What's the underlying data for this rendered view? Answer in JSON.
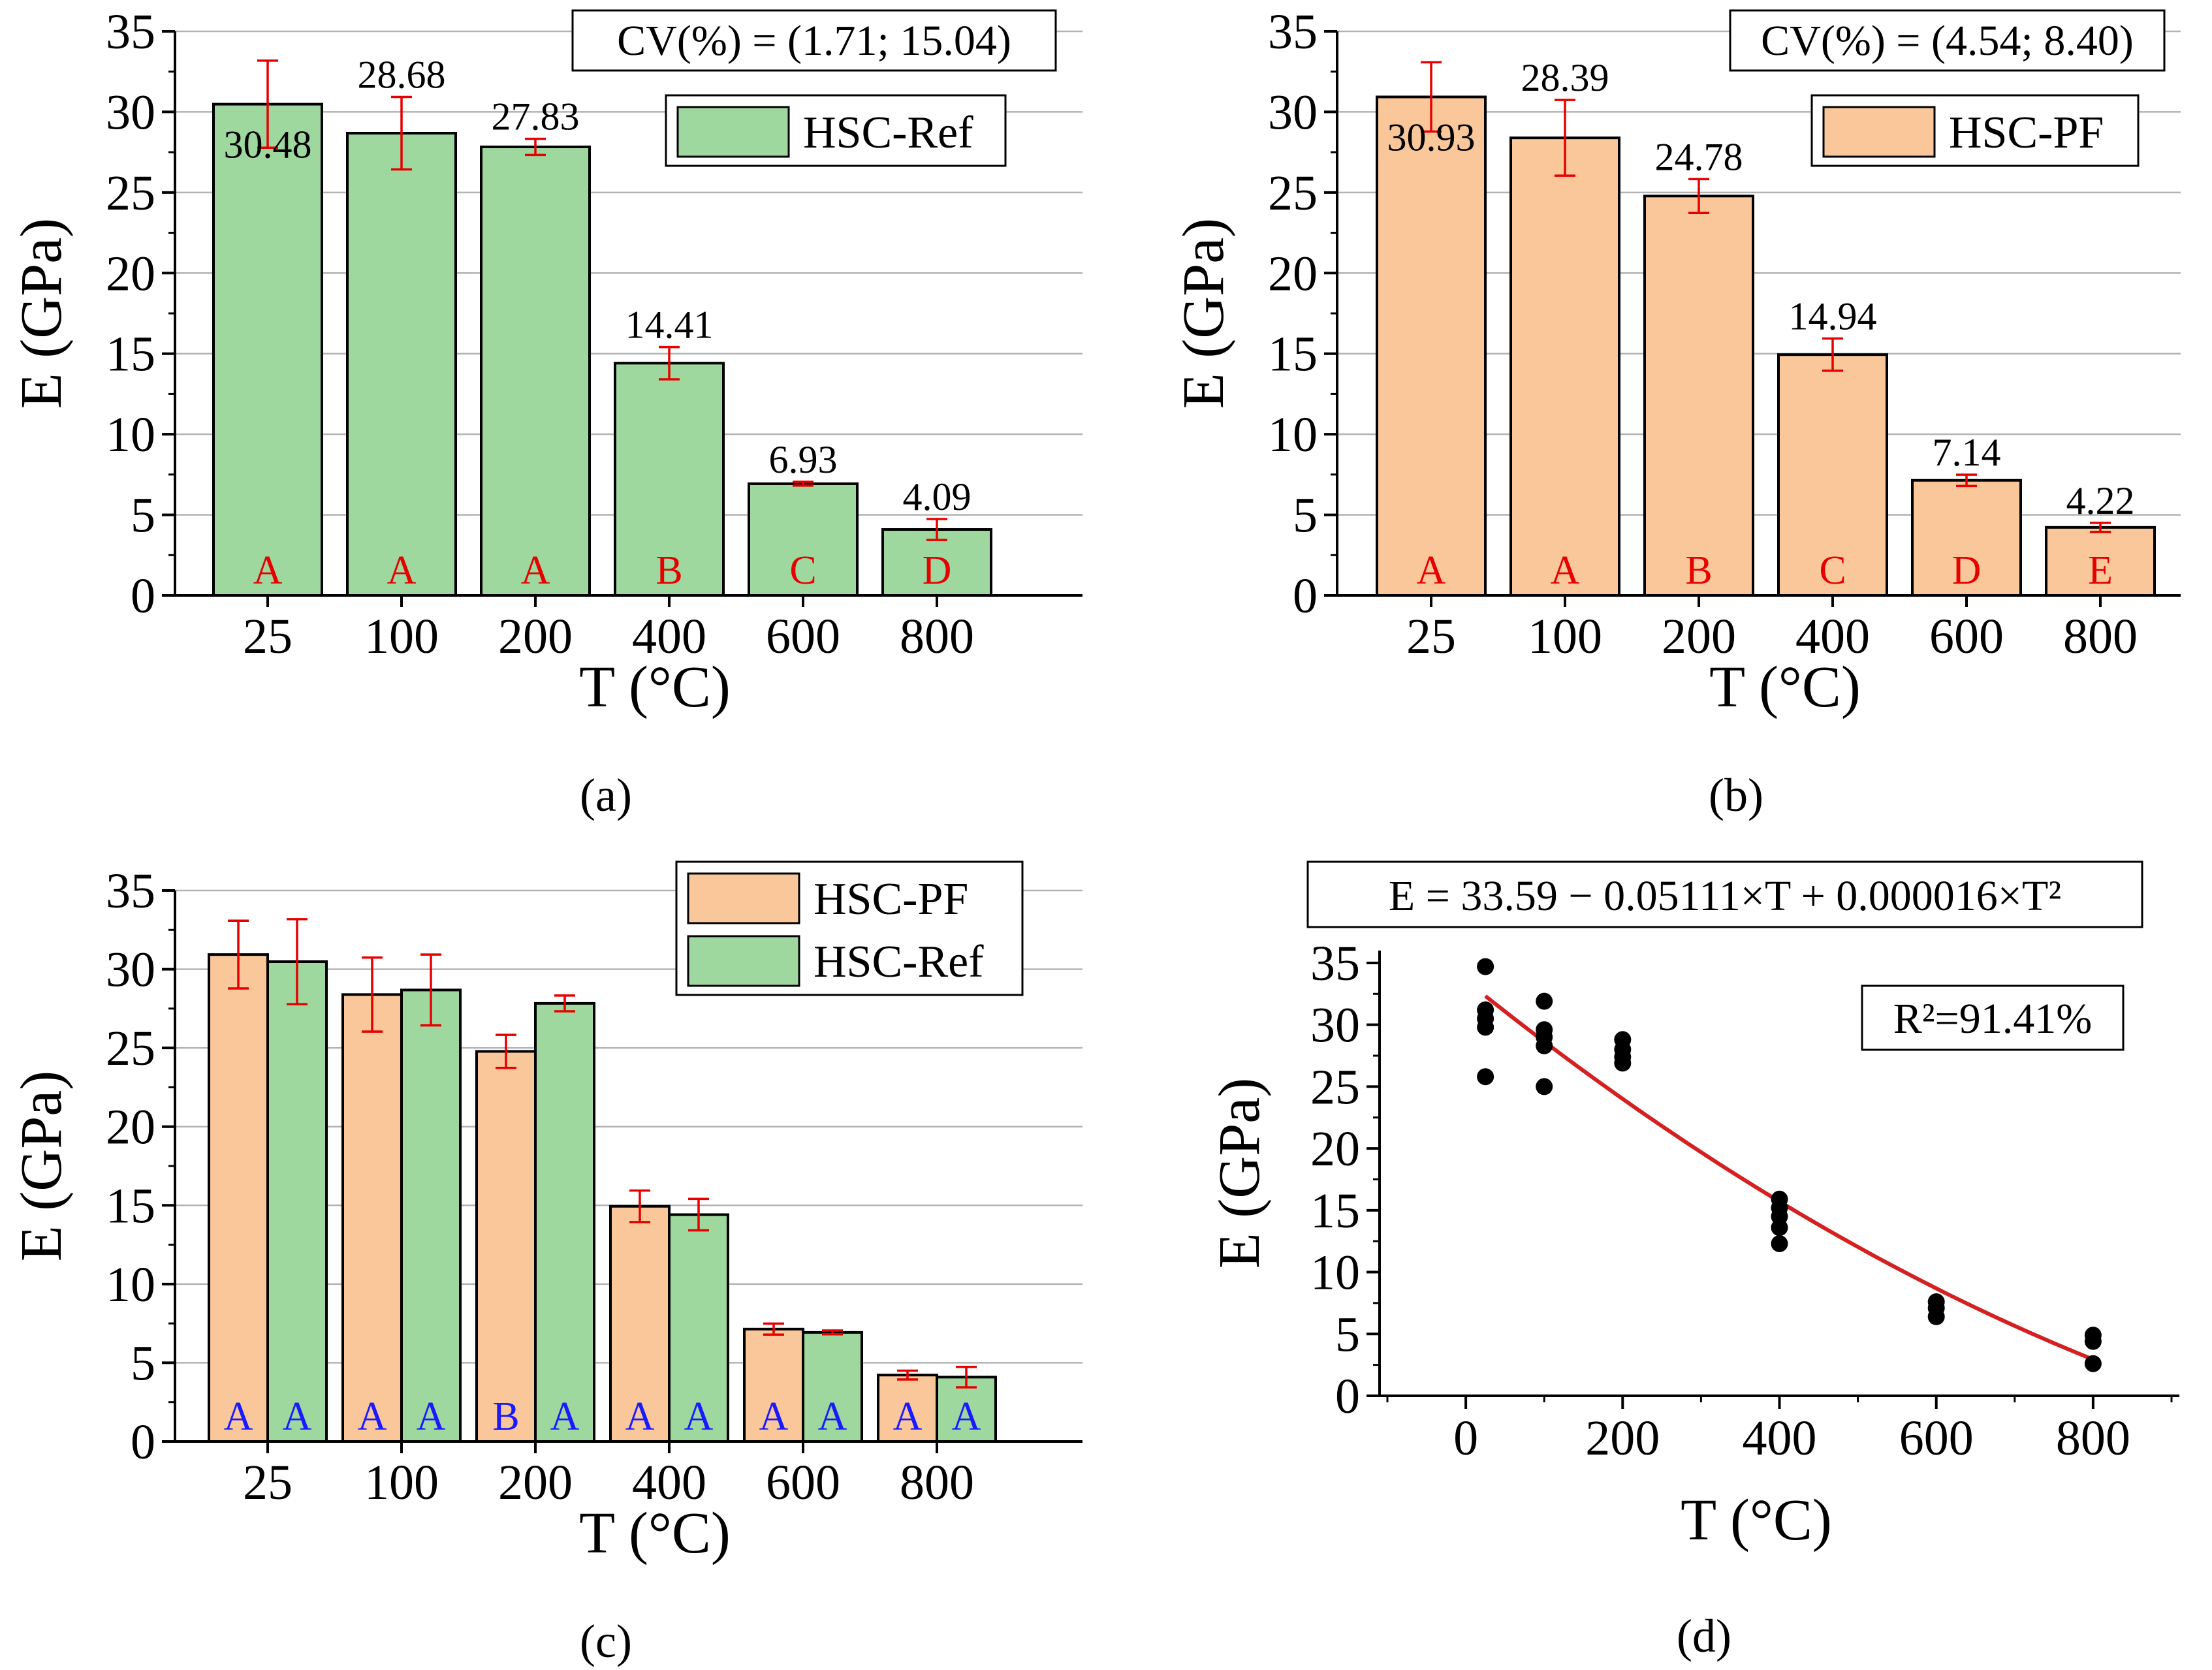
{
  "colors": {
    "ref_fill": "#9fd89f",
    "pf_fill": "#f9c79a",
    "bar_stroke": "#000000",
    "error_bar": "#e60000",
    "letters_single": "#e60000",
    "letters_compare": "#1a1aff",
    "fit_line": "#d42020",
    "points": "#000000",
    "grid": "#b3b3b3"
  },
  "chart_data": [
    {
      "panel": "(a)",
      "type": "bar",
      "xlabel": "T (°C)",
      "ylabel": "E (GPa)",
      "ylim": [
        0,
        35
      ],
      "yticks": [
        "0",
        "5",
        "10",
        "15",
        "20",
        "25",
        "30",
        "35"
      ],
      "categories": [
        "25",
        "100",
        "200",
        "400",
        "600",
        "800"
      ],
      "series": [
        {
          "name": "HSC-Ref",
          "values": [
            30.48,
            28.68,
            27.83,
            14.41,
            6.93,
            4.09
          ],
          "errors": [
            2.7,
            2.25,
            0.5,
            1.0,
            0.12,
            0.65
          ],
          "labels": [
            "30.48",
            "28.68",
            "27.83",
            "14.41",
            "6.93",
            "4.09"
          ],
          "groups": [
            "A",
            "A",
            "A",
            "B",
            "C",
            "D"
          ]
        }
      ],
      "cv_text": "CV(%) = (1.71; 15.04)",
      "legend": [
        "HSC-Ref"
      ]
    },
    {
      "panel": "(b)",
      "type": "bar",
      "xlabel": "T (°C)",
      "ylabel": "E (GPa)",
      "ylim": [
        0,
        35
      ],
      "yticks": [
        "0",
        "5",
        "10",
        "15",
        "20",
        "25",
        "30",
        "35"
      ],
      "categories": [
        "25",
        "100",
        "200",
        "400",
        "600",
        "800"
      ],
      "series": [
        {
          "name": "HSC-PF",
          "values": [
            30.93,
            28.39,
            24.78,
            14.94,
            7.14,
            4.22
          ],
          "errors": [
            2.15,
            2.35,
            1.05,
            1.0,
            0.35,
            0.28
          ],
          "labels": [
            "30.93",
            "28.39",
            "24.78",
            "14.94",
            "7.14",
            "4.22"
          ],
          "groups": [
            "A",
            "A",
            "B",
            "C",
            "D",
            "E"
          ]
        }
      ],
      "cv_text": "CV(%) = (4.54; 8.40)",
      "legend": [
        "HSC-PF"
      ]
    },
    {
      "panel": "(c)",
      "type": "bar",
      "xlabel": "T (°C)",
      "ylabel": "E (GPa)",
      "ylim": [
        0,
        35
      ],
      "yticks": [
        "0",
        "5",
        "10",
        "15",
        "20",
        "25",
        "30",
        "35"
      ],
      "categories": [
        "25",
        "100",
        "200",
        "400",
        "600",
        "800"
      ],
      "series": [
        {
          "name": "HSC-PF",
          "values": [
            30.93,
            28.39,
            24.78,
            14.94,
            7.14,
            4.22
          ],
          "errors": [
            2.15,
            2.35,
            1.05,
            1.0,
            0.35,
            0.28
          ],
          "groups": [
            "A",
            "A",
            "B",
            "A",
            "A",
            "A"
          ]
        },
        {
          "name": "HSC-Ref",
          "values": [
            30.48,
            28.68,
            27.83,
            14.41,
            6.93,
            4.09
          ],
          "errors": [
            2.7,
            2.25,
            0.5,
            1.0,
            0.12,
            0.65
          ],
          "groups": [
            "A",
            "A",
            "A",
            "A",
            "A",
            "A"
          ]
        }
      ],
      "legend": [
        "HSC-PF",
        "HSC-Ref"
      ]
    },
    {
      "panel": "(d)",
      "type": "scatter",
      "xlabel": "T (°C)",
      "ylabel": "E (GPa)",
      "xlim": [
        -110,
        910
      ],
      "ylim": [
        0,
        36
      ],
      "xticks": [
        "0",
        "200",
        "400",
        "600",
        "800"
      ],
      "yticks": [
        "0",
        "5",
        "10",
        "15",
        "20",
        "25",
        "30",
        "35"
      ],
      "points": [
        [
          25,
          34.7
        ],
        [
          25,
          31.2
        ],
        [
          25,
          30.5
        ],
        [
          25,
          29.8
        ],
        [
          25,
          25.8
        ],
        [
          100,
          31.9
        ],
        [
          100,
          29.6
        ],
        [
          100,
          29.0
        ],
        [
          100,
          28.3
        ],
        [
          100,
          25.0
        ],
        [
          200,
          28.8
        ],
        [
          200,
          28.0
        ],
        [
          200,
          27.4
        ],
        [
          200,
          26.9
        ],
        [
          400,
          15.9
        ],
        [
          400,
          15.2
        ],
        [
          400,
          14.5
        ],
        [
          400,
          13.6
        ],
        [
          400,
          12.3
        ],
        [
          600,
          7.6
        ],
        [
          600,
          7.1
        ],
        [
          600,
          6.4
        ],
        [
          800,
          4.9
        ],
        [
          800,
          4.4
        ],
        [
          800,
          2.6
        ]
      ],
      "fit": {
        "c0": 33.59,
        "c1": -0.05111,
        "c2": 1.6e-05,
        "x_range": [
          25,
          800
        ]
      },
      "equation": "E = 33.59 − 0.05111×T + 0.000016×T²",
      "r2_text": "R²=91.41%"
    }
  ]
}
